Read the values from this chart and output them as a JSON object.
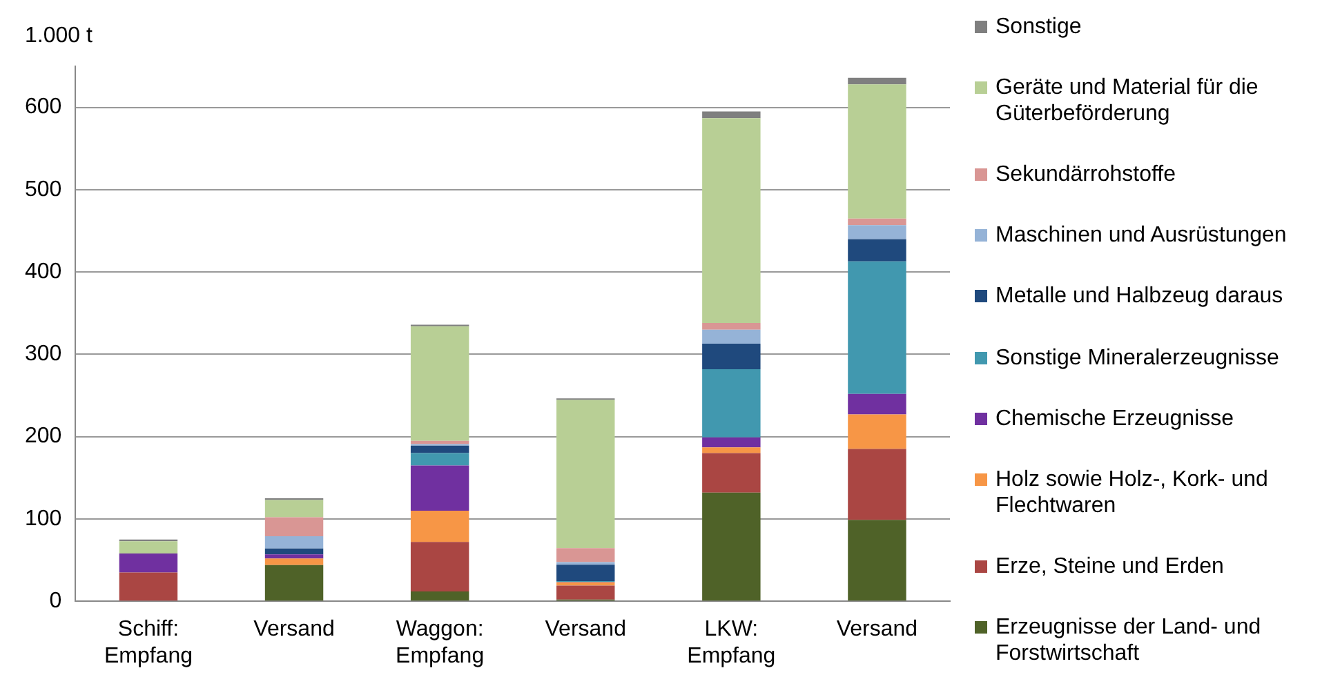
{
  "chart_data": {
    "type": "bar",
    "stacked": true,
    "ylabel": "1.000 t",
    "categories": [
      "Schiff: Empfang",
      "Versand",
      "Waggon: Empfang",
      "Versand",
      "LKW: Empfang",
      "Versand"
    ],
    "ylim": [
      0,
      650
    ],
    "yticks": [
      0,
      100,
      200,
      300,
      400,
      500,
      600
    ],
    "grid": "y",
    "legend": "right",
    "series": [
      {
        "name": "Erzeugnisse der Land- und Forstwirtschaft",
        "color": "#4f6228",
        "values": [
          0,
          44,
          12,
          2,
          132,
          99
        ]
      },
      {
        "name": "Erze, Steine und Erden",
        "color": "#aa4643",
        "values": [
          35,
          0,
          60,
          17,
          48,
          86
        ]
      },
      {
        "name": "Holz sowie Holz-, Kork- und Flechtwaren",
        "color": "#f79646",
        "values": [
          0,
          8,
          38,
          4,
          7,
          42
        ]
      },
      {
        "name": "Chemische Erzeugnisse",
        "color": "#7030a0",
        "values": [
          23,
          5,
          55,
          0.5,
          12,
          25
        ]
      },
      {
        "name": "Sonstige Mineralerzeugnisse",
        "color": "#4198af",
        "values": [
          0,
          0,
          15,
          1,
          83,
          161
        ]
      },
      {
        "name": "Metalle und Halbzeug daraus",
        "color": "#1f497d",
        "values": [
          0,
          7,
          9,
          20,
          31,
          27
        ]
      },
      {
        "name": "Maschinen und Ausrüstungen",
        "color": "#95b3d7",
        "values": [
          0,
          15,
          2,
          3,
          17,
          17
        ]
      },
      {
        "name": "Sekundärrohstoffe",
        "color": "#d99694",
        "values": [
          0,
          23,
          4,
          17,
          8,
          8
        ]
      },
      {
        "name": "Geräte und Material für die Güterbeförderung",
        "color": "#b8cf95",
        "values": [
          15,
          21,
          139,
          180,
          249,
          163
        ]
      },
      {
        "name": "Sonstige",
        "color": "#7f7f7f",
        "values": [
          2,
          2,
          2,
          2,
          8,
          8
        ]
      }
    ]
  }
}
